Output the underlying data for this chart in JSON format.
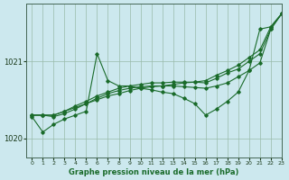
{
  "title": "Graphe pression niveau de la mer (hPa)",
  "bg_color": "#cce8ee",
  "grid_color": "#99bbaa",
  "line_color": "#1a6b2a",
  "xlim": [
    -0.5,
    23
  ],
  "ylim": [
    1019.75,
    1021.75
  ],
  "yticks": [
    1020,
    1021
  ],
  "xticks": [
    0,
    1,
    2,
    3,
    4,
    5,
    6,
    7,
    8,
    9,
    10,
    11,
    12,
    13,
    14,
    15,
    16,
    17,
    18,
    19,
    20,
    21,
    22,
    23
  ],
  "series": [
    {
      "x": [
        0,
        1,
        2,
        3,
        4,
        5,
        6,
        7,
        8,
        9,
        10,
        11,
        12,
        13,
        14,
        15,
        16,
        17,
        18,
        19,
        20,
        21,
        22,
        23
      ],
      "y": [
        1020.3,
        1020.3,
        1020.3,
        1020.35,
        1020.4,
        1020.45,
        1020.5,
        1020.55,
        1020.58,
        1020.62,
        1020.65,
        1020.67,
        1020.68,
        1020.7,
        1020.72,
        1020.73,
        1020.75,
        1020.82,
        1020.88,
        1020.95,
        1021.05,
        1021.15,
        1021.45,
        1021.62
      ]
    },
    {
      "x": [
        0,
        1,
        2,
        3,
        4,
        5,
        6,
        7,
        8,
        9,
        10,
        11,
        12,
        13,
        14,
        15,
        16,
        17,
        18,
        19,
        20,
        21,
        22,
        23
      ],
      "y": [
        1020.3,
        1020.3,
        1020.3,
        1020.35,
        1020.42,
        1020.48,
        1020.55,
        1020.6,
        1020.65,
        1020.68,
        1020.7,
        1020.72,
        1020.72,
        1020.73,
        1020.73,
        1020.73,
        1020.72,
        1020.78,
        1020.85,
        1020.9,
        1021.0,
        1021.1,
        1021.42,
        1021.62
      ]
    },
    {
      "x": [
        0,
        1,
        2,
        3,
        4,
        5,
        6,
        7,
        8,
        9,
        10,
        11,
        12,
        13,
        14,
        15,
        16,
        17,
        18,
        19,
        20,
        21,
        22,
        23
      ],
      "y": [
        1020.3,
        1020.3,
        1020.28,
        1020.32,
        1020.38,
        1020.45,
        1020.52,
        1020.58,
        1020.62,
        1020.65,
        1020.67,
        1020.68,
        1020.68,
        1020.68,
        1020.67,
        1020.66,
        1020.65,
        1020.68,
        1020.72,
        1020.8,
        1020.88,
        1020.98,
        1021.42,
        1021.62
      ]
    },
    {
      "x": [
        0,
        1,
        2,
        3,
        4,
        5,
        6,
        7,
        8,
        9,
        10,
        11,
        12,
        13,
        14,
        15,
        16,
        17,
        18,
        19,
        20,
        21,
        22,
        23
      ],
      "y": [
        1020.28,
        1020.08,
        1020.18,
        1020.25,
        1020.3,
        1020.35,
        1021.1,
        1020.75,
        1020.68,
        1020.68,
        1020.65,
        1020.63,
        1020.6,
        1020.58,
        1020.52,
        1020.45,
        1020.3,
        1020.38,
        1020.48,
        1020.6,
        1020.88,
        1021.42,
        1021.45,
        1021.62
      ]
    }
  ]
}
